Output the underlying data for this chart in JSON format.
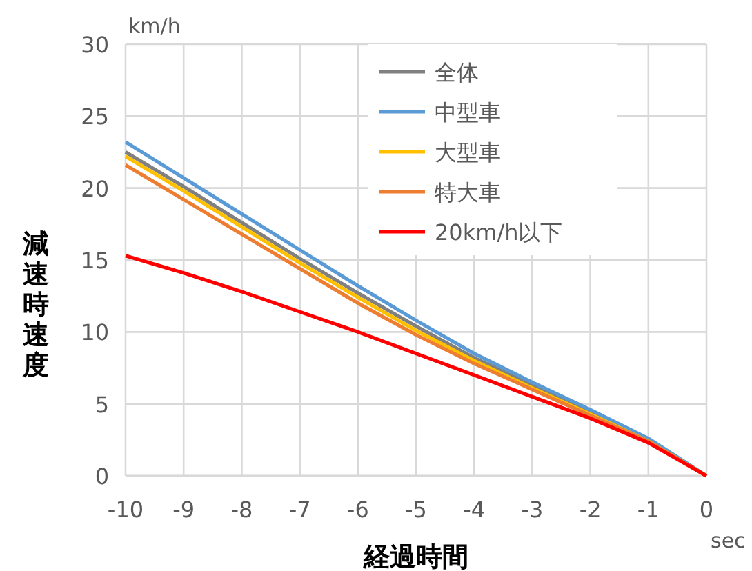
{
  "chart_data": {
    "type": "line",
    "xlabel": "経過時間",
    "ylabel": "減速時速度",
    "annotations": [
      "km/h",
      "sec"
    ],
    "x": [
      -10,
      -9,
      -8,
      -7,
      -6,
      -5,
      -4,
      -3,
      -2,
      -1,
      0
    ],
    "xlim": [
      -10,
      0
    ],
    "xticks": [
      -10,
      -9,
      -8,
      -7,
      -6,
      -5,
      -4,
      -3,
      -2,
      -1,
      0
    ],
    "ylim": [
      0,
      30
    ],
    "yticks": [
      0,
      5,
      10,
      15,
      20,
      25,
      30
    ],
    "grid": true,
    "legend": "top right",
    "marker": "none",
    "line_style": "solid",
    "series": [
      {
        "name": "全体",
        "color": "#808080",
        "values": [
          22.5,
          20.1,
          17.6,
          15.1,
          12.7,
          10.4,
          8.2,
          6.3,
          4.4,
          2.5,
          0
        ]
      },
      {
        "name": "中型車",
        "color": "#5b9bd5",
        "values": [
          23.2,
          20.7,
          18.2,
          15.7,
          13.2,
          10.8,
          8.5,
          6.5,
          4.6,
          2.6,
          0
        ]
      },
      {
        "name": "大型車",
        "color": "#ffc000",
        "values": [
          22.2,
          19.8,
          17.3,
          14.8,
          12.4,
          10.1,
          8.0,
          6.1,
          4.3,
          2.4,
          0
        ]
      },
      {
        "name": "特大車",
        "color": "#ed7d31",
        "values": [
          21.6,
          19.2,
          16.8,
          14.4,
          12.0,
          9.8,
          7.8,
          6.0,
          4.2,
          2.4,
          0
        ]
      },
      {
        "name": "20km/h以下",
        "color": "#ff0000",
        "values": [
          15.3,
          14.1,
          12.8,
          11.4,
          10.0,
          8.5,
          7.0,
          5.5,
          4.0,
          2.3,
          0
        ]
      }
    ]
  }
}
